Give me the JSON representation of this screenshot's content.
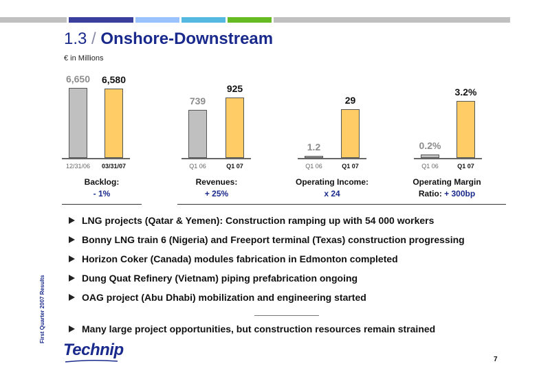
{
  "header": {
    "section_number": "1.3",
    "separator": "/",
    "title": "Onshore-Downstream",
    "units": "€ in Millions",
    "bar_colors": [
      "#c0c0c0",
      "#3a3f9e",
      "#99c2ff",
      "#55b8e0",
      "#66bb22",
      "#c0c0c0"
    ]
  },
  "side_text": "First Quarter 2007 Results",
  "chart_data": [
    {
      "type": "bar",
      "categories": [
        "12/31/06",
        "03/31/07"
      ],
      "values": [
        6650,
        6580
      ],
      "value_labels": [
        "6,650",
        "6,580"
      ],
      "caption_line1": "Backlog:",
      "caption_line2": "- 1%"
    },
    {
      "type": "bar",
      "categories": [
        "Q1 06",
        "Q1 07"
      ],
      "values": [
        739,
        925
      ],
      "value_labels": [
        "739",
        "925"
      ],
      "caption_line1": "Revenues:",
      "caption_line2": "+ 25%"
    },
    {
      "type": "bar",
      "categories": [
        "Q1 06",
        "Q1 07"
      ],
      "values": [
        1.2,
        29
      ],
      "value_labels": [
        "1.2",
        "29"
      ],
      "caption_line1": "Operating  Income:",
      "caption_line2": "x 24"
    },
    {
      "type": "bar",
      "categories": [
        "Q1 06",
        "Q1 07"
      ],
      "values": [
        0.2,
        3.2
      ],
      "value_labels": [
        "0.2%",
        "3.2%"
      ],
      "caption_line1": "Operating Margin",
      "caption_line2_prefix": "Ratio: ",
      "caption_line2": "+ 300bp"
    }
  ],
  "bullets": [
    "LNG projects (Qatar & Yemen): Construction ramping up with 54 000 workers",
    "Bonny LNG train 6 (Nigeria) and Freeport terminal (Texas) construction progressing",
    "Horizon Coker (Canada) modules fabrication in Edmonton completed",
    "Dung Quat Refinery (Vietnam) piping prefabrication ongoing",
    "OAG project (Abu Dhabi) mobilization and engineering started"
  ],
  "final_bullet": "Many large project opportunities, but construction resources remain strained",
  "logo_text": "Technip",
  "page_number": "7"
}
